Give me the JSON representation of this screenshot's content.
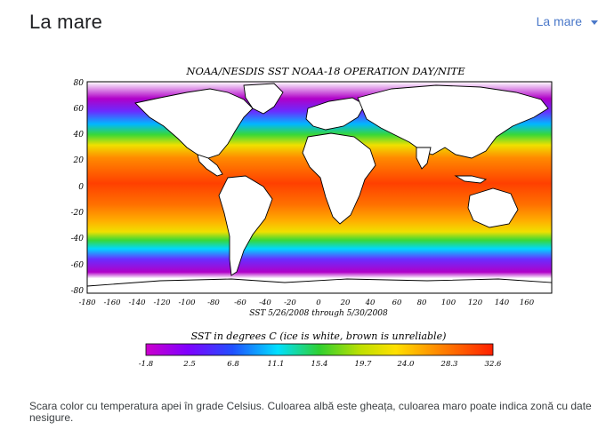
{
  "header": {
    "title": "La mare",
    "selector_label": "La mare"
  },
  "figure": {
    "map_title": "NOAA/NESDIS SST NOAA-18 OPERATION DAY/NITE",
    "lat_ticks": [
      "80",
      "60",
      "40",
      "20",
      "0",
      "-20",
      "-40",
      "-60",
      "-80"
    ],
    "lon_ticks": [
      "-180",
      "-160",
      "-140",
      "-120",
      "-100",
      "-80",
      "-60",
      "-40",
      "-20",
      "0",
      "20",
      "40",
      "60",
      "80",
      "100",
      "120",
      "140",
      "160"
    ],
    "date_range": "SST  5/26/2008 through 5/30/2008",
    "colorbar_title": "SST in degrees C (ice is white, brown is unreliable)",
    "colorbar_ticks": [
      "-1.8",
      "2.5",
      "6.8",
      "11.1",
      "15.4",
      "19.7",
      "24.0",
      "28.3",
      "32.6"
    ],
    "colors": {
      "ocean_cold": "#b000c8",
      "ocean_cool": "#6a2cff",
      "ocean_cyan": "#00e0ff",
      "ocean_green": "#30d030",
      "ocean_yellow": "#f0e000",
      "ocean_orange": "#ff8a00",
      "ocean_red": "#ff3d00"
    }
  },
  "caption": "Scara color cu temperatura apei în grade Celsius. Culoarea albă este gheața, culoarea maro poate indica zonă cu date nesigure."
}
